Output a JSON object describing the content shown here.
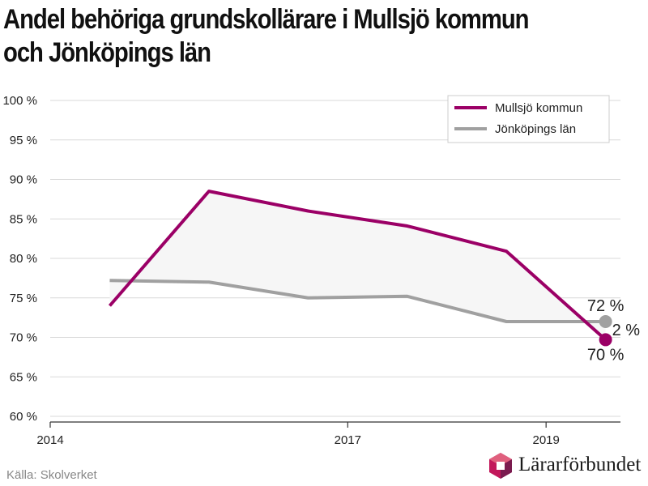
{
  "header": {
    "title": "Andel behöriga grundskollärare i Mullsjö kommun och Jönköpings län"
  },
  "footer": {
    "source": "Källa: Skolverket",
    "brand": "Lärarförbundet"
  },
  "chart_data": {
    "type": "line",
    "title": "Andel behöriga grundskollärare i Mullsjö kommun och Jönköpings län",
    "xlabel": "",
    "ylabel": "",
    "x": [
      2014.6,
      2015.6,
      2016.6,
      2017.6,
      2018.6,
      2019.6
    ],
    "xlim": [
      2014,
      2019.75
    ],
    "ylim": [
      60,
      100
    ],
    "x_ticks": [
      2014,
      2017,
      2019
    ],
    "x_tick_labels": [
      "2014",
      "2017",
      "2019"
    ],
    "y_ticks": [
      60,
      65,
      70,
      75,
      80,
      85,
      90,
      95,
      100
    ],
    "y_tick_labels": [
      "60 %",
      "65 %",
      "70 %",
      "75 %",
      "80 %",
      "85 %",
      "90 %",
      "95 %",
      "100 %"
    ],
    "grid": true,
    "legend_position": "top-right",
    "series": [
      {
        "name": "Mullsjö kommun",
        "color": "#9b0066",
        "values": [
          74.0,
          88.5,
          86.0,
          84.1,
          80.9,
          69.7
        ]
      },
      {
        "name": "Jönköpings län",
        "color": "#a0a0a0",
        "values": [
          77.2,
          77.0,
          75.0,
          75.2,
          72.0,
          72.0
        ]
      }
    ],
    "band_color": "#f6f6f6",
    "end_labels": [
      "72 %",
      "2 %",
      "70 %"
    ]
  }
}
